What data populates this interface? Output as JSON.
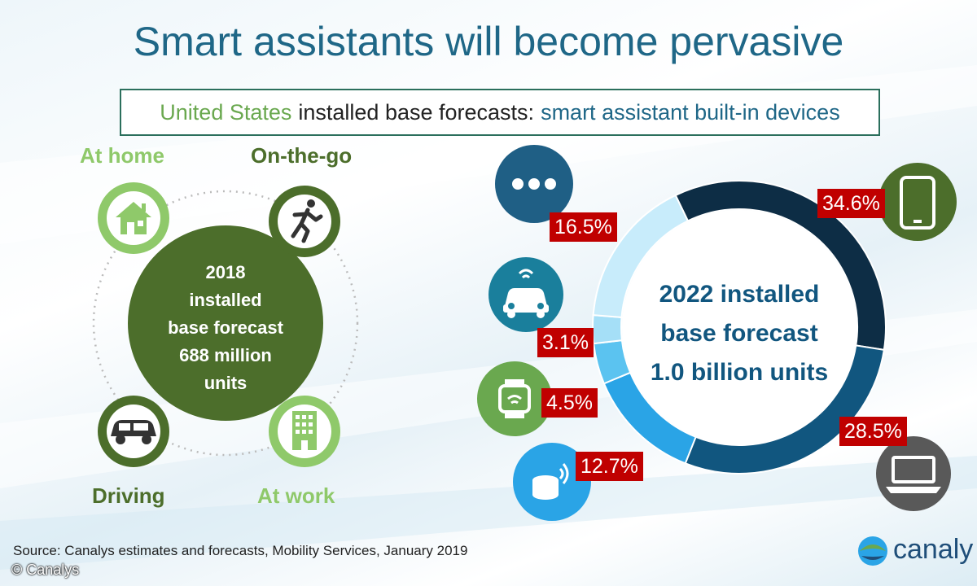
{
  "title": "Smart assistants will become pervasive",
  "subtitle": {
    "region": "United States",
    "middle": "installed base forecasts:",
    "category": "smart assistant built-in devices"
  },
  "left_panel": {
    "labels": {
      "home": "At home",
      "go": "On-the-go",
      "driving": "Driving",
      "work": "At work"
    },
    "center_lines": [
      "2018",
      "installed",
      "base forecast",
      "688 million",
      "units"
    ]
  },
  "chart_data": {
    "type": "pie",
    "variant": "donut",
    "title": "2022 installed base forecast 1.0 billion units",
    "center_lines": [
      "2022 installed",
      "base forecast",
      "1.0 billion units"
    ],
    "slices": [
      {
        "label": "Smartphones",
        "value": 34.6,
        "display": "34.6%",
        "color": "#0d2d45",
        "icon": "smartphone-icon"
      },
      {
        "label": "PCs",
        "value": 28.5,
        "display": "28.5%",
        "color": "#11567f",
        "icon": "laptop-icon"
      },
      {
        "label": "Smart speakers",
        "value": 12.7,
        "display": "12.7%",
        "color": "#2aa4e6",
        "icon": "smart-speaker-icon"
      },
      {
        "label": "Wearables",
        "value": 4.5,
        "display": "4.5%",
        "color": "#5bc3f0",
        "icon": "smartwatch-icon"
      },
      {
        "label": "Connected cars",
        "value": 3.1,
        "display": "3.1%",
        "color": "#a5dff7",
        "icon": "connected-car-icon"
      },
      {
        "label": "Others",
        "value": 16.5,
        "display": "16.5%",
        "color": "#c8ecfb",
        "icon": "more-dots-icon"
      }
    ]
  },
  "colors": {
    "title": "#1f6787",
    "green_dark": "#4c6e2b",
    "green_light": "#8fc96a",
    "label_red": "#c00000"
  },
  "source": "Source:  Canalys estimates and forecasts, Mobility Services, January 2019",
  "copyright": "© Canalys",
  "logo": {
    "text": "canaly"
  }
}
